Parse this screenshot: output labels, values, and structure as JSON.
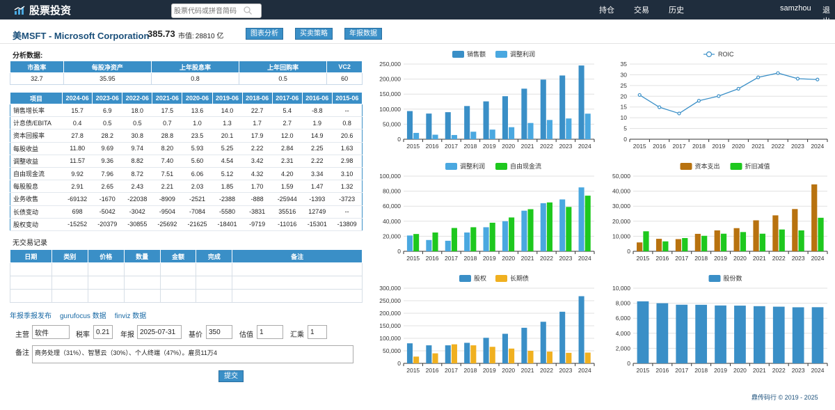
{
  "app": {
    "brand": "股票投资",
    "search_placeholder": "股票代码或拼音简码",
    "nav": [
      "持仓",
      "交易",
      "历史"
    ],
    "user": "samzhou",
    "logout": "退出"
  },
  "stock": {
    "title": "美MSFT - Microsoft Corporation",
    "price": "385.73",
    "mcap_label": "市值:",
    "mcap_value": "28810 亿",
    "buttons": [
      "图表分析",
      "买卖策略",
      "年报数据"
    ]
  },
  "analysis_label": "分析数据:",
  "summary_table": {
    "headers": [
      "市盈率",
      "每股净资产",
      "上年股息率",
      "上年回购率",
      "VC2"
    ],
    "values": [
      "32.7",
      "35.95",
      "0.8",
      "0.5",
      "60"
    ]
  },
  "annual_table": {
    "headers": [
      "项目",
      "2024-06",
      "2023-06",
      "2022-06",
      "2021-06",
      "2020-06",
      "2019-06",
      "2018-06",
      "2017-06",
      "2016-06",
      "2015-06"
    ],
    "rows": [
      [
        "销售增长率",
        "15.7",
        "6.9",
        "18.0",
        "17.5",
        "13.6",
        "14.0",
        "22.7",
        "5.4",
        "-8.8",
        "--"
      ],
      [
        "计息债/EBITA",
        "0.4",
        "0.5",
        "0.5",
        "0.7",
        "1.0",
        "1.3",
        "1.7",
        "2.7",
        "1.9",
        "0.8"
      ],
      [
        "资本回报率",
        "27.8",
        "28.2",
        "30.8",
        "28.8",
        "23.5",
        "20.1",
        "17.9",
        "12.0",
        "14.9",
        "20.6"
      ],
      [
        "每股收益",
        "11.80",
        "9.69",
        "9.74",
        "8.20",
        "5.93",
        "5.25",
        "2.22",
        "2.84",
        "2.25",
        "1.63"
      ],
      [
        "调整收益",
        "11.57",
        "9.36",
        "8.82",
        "7.40",
        "5.60",
        "4.54",
        "3.42",
        "2.31",
        "2.22",
        "2.98"
      ],
      [
        "自由现金流",
        "9.92",
        "7.96",
        "8.72",
        "7.51",
        "6.06",
        "5.12",
        "4.32",
        "4.20",
        "3.34",
        "3.10"
      ],
      [
        "每股股息",
        "2.91",
        "2.65",
        "2.43",
        "2.21",
        "2.03",
        "1.85",
        "1.70",
        "1.59",
        "1.47",
        "1.32"
      ],
      [
        "业务收售",
        "-69132",
        "-1670",
        "-22038",
        "-8909",
        "-2521",
        "-2388",
        "-888",
        "-25944",
        "-1393",
        "-3723"
      ],
      [
        "长债变动",
        "698",
        "-5042",
        "-3042",
        "-9504",
        "-7084",
        "-5580",
        "-3831",
        "35516",
        "12749",
        "--"
      ],
      [
        "股权变动",
        "-15252",
        "-20379",
        "-30855",
        "-25692",
        "-21625",
        "-18401",
        "-9719",
        "-11016",
        "-15301",
        "-13809"
      ]
    ]
  },
  "trades": {
    "title": "无交易记录",
    "headers": [
      "日期",
      "类别",
      "价格",
      "数量",
      "金额",
      "完成",
      "备注"
    ]
  },
  "links": [
    "年报季报发布",
    "gurufocus 数据",
    "finviz 数据"
  ],
  "form": {
    "labels": [
      "主营",
      "税率",
      "年报",
      "基价",
      "估值",
      "汇乘",
      "备注"
    ],
    "main_business": "软件",
    "tax_rate": "0.21",
    "report_date": "2025-07-31",
    "base_price": "350",
    "valuation": "1",
    "fx": "1",
    "note": "商务处理（31%）、智慧云（30%）、个人终端（47%）。雇员11万4",
    "submit": "提交"
  },
  "footer": "鼎传码行 © 2019 - 2025",
  "colors": {
    "blue": "#3a8fc7",
    "light_blue": "#4aa8e0",
    "green": "#1ec81e",
    "brown": "#b8720f",
    "orange": "#f0b020",
    "nav_bg": "#1f2d3d"
  },
  "chart_data": [
    {
      "type": "bar",
      "categories": [
        "2015",
        "2016",
        "2017",
        "2018",
        "2019",
        "2020",
        "2021",
        "2022",
        "2023",
        "2024"
      ],
      "series": [
        {
          "name": "销售额",
          "values": [
            93580,
            85320,
            89950,
            110360,
            125840,
            143020,
            168090,
            198270,
            211920,
            245120
          ]
        },
        {
          "name": "调整利润",
          "values": [
            21000,
            15000,
            14000,
            25000,
            32000,
            40000,
            54000,
            64000,
            69000,
            85000
          ]
        }
      ],
      "ylim": [
        0,
        250000
      ],
      "yticks": [
        "0",
        "50,000",
        "100,000",
        "150,000",
        "200,000",
        "250,000"
      ]
    },
    {
      "type": "line",
      "categories": [
        "2015",
        "2016",
        "2017",
        "2018",
        "2019",
        "2020",
        "2021",
        "2022",
        "2023",
        "2024"
      ],
      "series": [
        {
          "name": "ROIC",
          "values": [
            20.6,
            14.9,
            12.0,
            17.9,
            20.1,
            23.5,
            28.8,
            30.8,
            28.2,
            27.8
          ]
        }
      ],
      "ylim": [
        0,
        35
      ],
      "yticks": [
        "0",
        "5",
        "10",
        "15",
        "20",
        "25",
        "30",
        "35"
      ]
    },
    {
      "type": "bar",
      "categories": [
        "2015",
        "2016",
        "2017",
        "2018",
        "2019",
        "2020",
        "2021",
        "2022",
        "2023",
        "2024"
      ],
      "series": [
        {
          "name": "调整利润",
          "values": [
            21000,
            15000,
            14000,
            25000,
            32000,
            40000,
            54000,
            64000,
            69000,
            85000
          ]
        },
        {
          "name": "自由现金流",
          "values": [
            23000,
            25000,
            31000,
            32000,
            38000,
            45000,
            56000,
            65000,
            59000,
            74000
          ]
        }
      ],
      "ylim": [
        0,
        100000
      ],
      "yticks": [
        "0",
        "20,000",
        "40,000",
        "60,000",
        "80,000",
        "100,000"
      ]
    },
    {
      "type": "bar",
      "categories": [
        "2015",
        "2016",
        "2017",
        "2018",
        "2019",
        "2020",
        "2021",
        "2022",
        "2023",
        "2024"
      ],
      "series": [
        {
          "name": "资本支出",
          "values": [
            5900,
            8300,
            8100,
            11600,
            13900,
            15400,
            20600,
            23900,
            28100,
            44500
          ]
        },
        {
          "name": "折旧减值",
          "values": [
            13300,
            6600,
            8800,
            10300,
            11700,
            12800,
            11700,
            14500,
            13900,
            22300
          ]
        }
      ],
      "ylim": [
        0,
        50000
      ],
      "yticks": [
        "0",
        "10,000",
        "20,000",
        "30,000",
        "40,000",
        "50,000"
      ]
    },
    {
      "type": "bar",
      "categories": [
        "2015",
        "2016",
        "2017",
        "2018",
        "2019",
        "2020",
        "2021",
        "2022",
        "2023",
        "2024"
      ],
      "series": [
        {
          "name": "股权",
          "values": [
            80000,
            72000,
            72000,
            82000,
            102000,
            118000,
            142000,
            166000,
            206000,
            268000
          ]
        },
        {
          "name": "长期债",
          "values": [
            27000,
            40000,
            76000,
            72000,
            66000,
            59000,
            50000,
            47000,
            42000,
            43000
          ]
        }
      ],
      "ylim": [
        0,
        300000
      ],
      "yticks": [
        "0",
        "50,000",
        "100,000",
        "150,000",
        "200,000",
        "250,000",
        "300,000"
      ]
    },
    {
      "type": "bar",
      "categories": [
        "2015",
        "2016",
        "2017",
        "2018",
        "2019",
        "2020",
        "2021",
        "2022",
        "2023",
        "2024"
      ],
      "series": [
        {
          "name": "股份数",
          "values": [
            8250,
            8000,
            7800,
            7790,
            7700,
            7680,
            7610,
            7540,
            7460,
            7470
          ]
        }
      ],
      "ylim": [
        0,
        10000
      ],
      "yticks": [
        "0",
        "2,000",
        "4,000",
        "6,000",
        "8,000",
        "10,000"
      ]
    }
  ]
}
